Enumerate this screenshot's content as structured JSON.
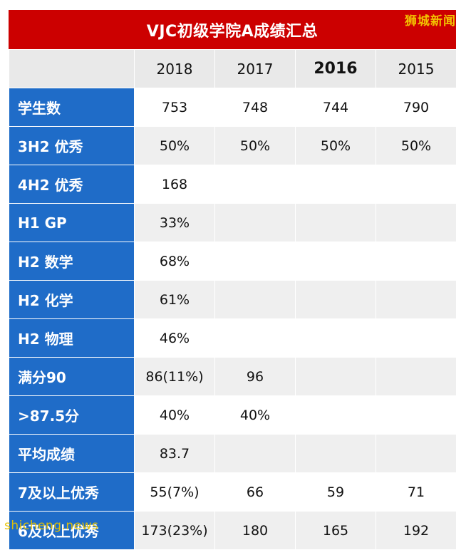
{
  "title": "VJC初级学院A成绩汇总",
  "watermark_top": "狮城新闻",
  "watermark_bottom": "shicheng.news",
  "years": [
    "2018",
    "2017",
    "2016",
    "2015"
  ],
  "rows": [
    {
      "label": "学生数",
      "values": [
        "753",
        "748",
        "744",
        "790"
      ]
    },
    {
      "label": "3H2 优秀",
      "values": [
        "50%",
        "50%",
        "50%",
        "50%"
      ]
    },
    {
      "label": "4H2 优秀",
      "values": [
        "168",
        "",
        "",
        ""
      ]
    },
    {
      "label": "H1 GP",
      "values": [
        "33%",
        "",
        "",
        ""
      ]
    },
    {
      "label": "H2 数学",
      "values": [
        "68%",
        "",
        "",
        ""
      ]
    },
    {
      "label": "H2 化学",
      "values": [
        "61%",
        "",
        "",
        ""
      ]
    },
    {
      "label": "H2 物理",
      "values": [
        "46%",
        "",
        "",
        ""
      ]
    },
    {
      "label": "满分90",
      "values": [
        "86(11%)",
        "96",
        "",
        ""
      ]
    },
    {
      "label": ">87.5分",
      "values": [
        "40%",
        "40%",
        "",
        ""
      ]
    },
    {
      "label": "平均成绩",
      "values": [
        "83.7",
        "",
        "",
        ""
      ]
    },
    {
      "label": "7及以上优秀",
      "values": [
        "55(7%)",
        "66",
        "59",
        "71"
      ]
    },
    {
      "label": "6及以上优秀",
      "values": [
        "173(23%)",
        "180",
        "165",
        "192"
      ]
    }
  ],
  "colors": {
    "title_bg": "#cc0000",
    "label_bg": "#1f6cc8",
    "header_bg": "#e9e9e9",
    "watermark": "#f2c200"
  }
}
